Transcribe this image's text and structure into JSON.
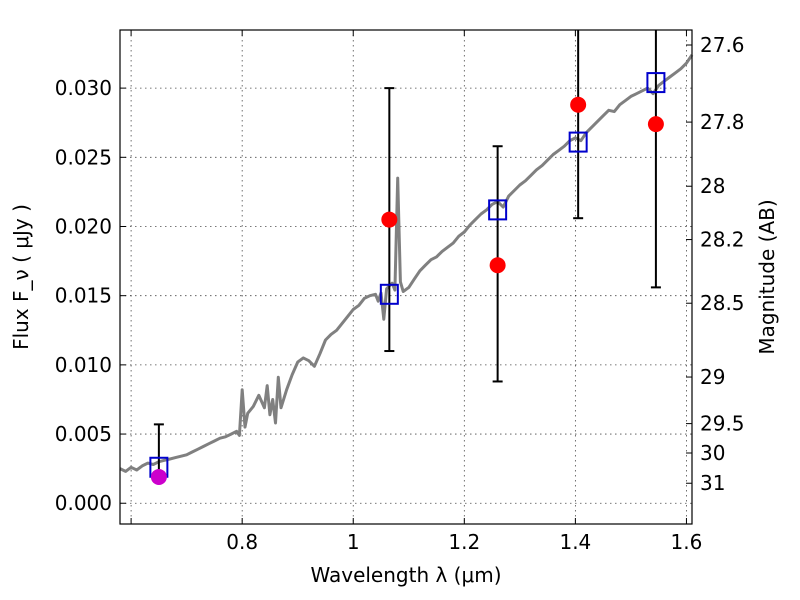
{
  "chart_data": {
    "type": "scatter",
    "xlabel": "Wavelength  λ (μm)",
    "ylabel": "Flux  F_ν  ( μJy )",
    "ylabel_right": "Magnitude (AB)",
    "xlim": [
      0.58,
      1.61
    ],
    "ylim": [
      -0.0015,
      0.0342
    ],
    "xticks": [
      {
        "value": 0.6,
        "label": ""
      },
      {
        "value": 0.8,
        "label": "0.8"
      },
      {
        "value": 1.0,
        "label": "1"
      },
      {
        "value": 1.2,
        "label": "1.2"
      },
      {
        "value": 1.4,
        "label": "1.4"
      },
      {
        "value": 1.6,
        "label": "1.6"
      }
    ],
    "yticks": [
      {
        "value": 0.0,
        "label": "0.000"
      },
      {
        "value": 0.005,
        "label": "0.005"
      },
      {
        "value": 0.01,
        "label": "0.010"
      },
      {
        "value": 0.015,
        "label": "0.015"
      },
      {
        "value": 0.02,
        "label": "0.020"
      },
      {
        "value": 0.025,
        "label": "0.025"
      },
      {
        "value": 0.03,
        "label": "0.030"
      }
    ],
    "right_ticks": [
      {
        "mag": 27.6,
        "label": "27.6"
      },
      {
        "mag": 27.8,
        "label": "27.8"
      },
      {
        "mag": 28.0,
        "label": "28"
      },
      {
        "mag": 28.2,
        "label": "28.2"
      },
      {
        "mag": 28.5,
        "label": "28.5"
      },
      {
        "mag": 29.0,
        "label": "29"
      },
      {
        "mag": 29.5,
        "label": "29.5"
      },
      {
        "mag": 30.0,
        "label": "30"
      },
      {
        "mag": 31.0,
        "label": "31"
      }
    ],
    "grid": true,
    "model_spectrum": {
      "color": "#808080",
      "x": [
        0.58,
        0.59,
        0.6,
        0.61,
        0.62,
        0.63,
        0.64,
        0.65,
        0.66,
        0.67,
        0.68,
        0.69,
        0.7,
        0.71,
        0.72,
        0.73,
        0.74,
        0.75,
        0.76,
        0.77,
        0.78,
        0.79,
        0.795,
        0.8,
        0.805,
        0.81,
        0.82,
        0.83,
        0.84,
        0.845,
        0.85,
        0.855,
        0.86,
        0.865,
        0.87,
        0.88,
        0.89,
        0.9,
        0.91,
        0.92,
        0.93,
        0.94,
        0.95,
        0.96,
        0.97,
        0.98,
        0.99,
        1.0,
        1.01,
        1.02,
        1.03,
        1.04,
        1.045,
        1.05,
        1.055,
        1.06,
        1.065,
        1.07,
        1.075,
        1.08,
        1.085,
        1.09,
        1.1,
        1.11,
        1.12,
        1.13,
        1.14,
        1.15,
        1.16,
        1.17,
        1.18,
        1.19,
        1.2,
        1.21,
        1.22,
        1.23,
        1.24,
        1.25,
        1.26,
        1.27,
        1.28,
        1.29,
        1.3,
        1.31,
        1.32,
        1.33,
        1.34,
        1.35,
        1.36,
        1.37,
        1.38,
        1.39,
        1.4,
        1.41,
        1.42,
        1.43,
        1.44,
        1.45,
        1.46,
        1.47,
        1.48,
        1.49,
        1.5,
        1.51,
        1.52,
        1.53,
        1.54,
        1.55,
        1.56,
        1.57,
        1.58,
        1.59,
        1.6,
        1.61
      ],
      "y": [
        0.0025,
        0.0023,
        0.0026,
        0.0024,
        0.0027,
        0.0029,
        0.0028,
        0.003,
        0.0031,
        0.0032,
        0.0033,
        0.0034,
        0.0035,
        0.0037,
        0.0039,
        0.0041,
        0.0043,
        0.0045,
        0.0047,
        0.0048,
        0.005,
        0.0052,
        0.0049,
        0.0082,
        0.0055,
        0.0065,
        0.007,
        0.0078,
        0.0069,
        0.0085,
        0.0064,
        0.0075,
        0.0058,
        0.0091,
        0.0069,
        0.0082,
        0.0093,
        0.0102,
        0.0105,
        0.0103,
        0.0099,
        0.0108,
        0.0118,
        0.0122,
        0.0125,
        0.013,
        0.0135,
        0.014,
        0.0143,
        0.0148,
        0.015,
        0.0151,
        0.0146,
        0.0152,
        0.0133,
        0.0155,
        0.0157,
        0.0159,
        0.0154,
        0.0235,
        0.016,
        0.0153,
        0.0156,
        0.0162,
        0.0168,
        0.0172,
        0.0176,
        0.0178,
        0.0182,
        0.0185,
        0.0188,
        0.0193,
        0.0196,
        0.0201,
        0.0205,
        0.0209,
        0.0212,
        0.0216,
        0.0218,
        0.0214,
        0.0222,
        0.0226,
        0.023,
        0.0233,
        0.0237,
        0.0241,
        0.0244,
        0.0248,
        0.0252,
        0.0255,
        0.0258,
        0.0262,
        0.0264,
        0.0262,
        0.0268,
        0.0272,
        0.0276,
        0.028,
        0.0284,
        0.0283,
        0.0288,
        0.0291,
        0.0294,
        0.0296,
        0.0298,
        0.03,
        0.0296,
        0.0302,
        0.0305,
        0.0308,
        0.0311,
        0.0314,
        0.0318,
        0.0324
      ]
    },
    "model_photometry": {
      "color": "#0000cc",
      "marker": "open-square",
      "points": [
        {
          "x": 0.65,
          "y": 0.0026
        },
        {
          "x": 1.065,
          "y": 0.0151
        },
        {
          "x": 1.26,
          "y": 0.0212
        },
        {
          "x": 1.405,
          "y": 0.0261
        },
        {
          "x": 1.545,
          "y": 0.0304
        }
      ]
    },
    "observed": {
      "points": [
        {
          "x": 0.65,
          "y": 0.0019,
          "yerr_low": 0.0019,
          "yerr_high": 0.0057,
          "color": "#cc00cc"
        },
        {
          "x": 1.065,
          "y": 0.0205,
          "yerr_low": 0.011,
          "yerr_high": 0.03,
          "color": "#ff0000"
        },
        {
          "x": 1.26,
          "y": 0.0172,
          "yerr_low": 0.0088,
          "yerr_high": 0.0258,
          "color": "#ff0000"
        },
        {
          "x": 1.405,
          "y": 0.0288,
          "yerr_low": 0.0206,
          "yerr_high": 0.0342,
          "color": "#ff0000"
        },
        {
          "x": 1.545,
          "y": 0.0274,
          "yerr_low": 0.0156,
          "yerr_high": 0.0342,
          "color": "#ff0000"
        }
      ]
    }
  }
}
